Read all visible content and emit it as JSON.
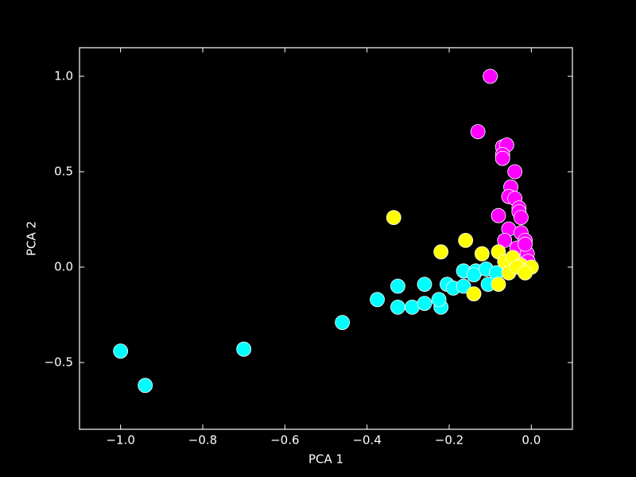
{
  "chart_data": {
    "type": "scatter",
    "x_label": "PCA 1",
    "y_label": "PCA 2",
    "xlim": [
      -1.1,
      0.1
    ],
    "ylim": [
      -0.85,
      1.15
    ],
    "xticks": [
      {
        "value": -1.0,
        "label": "−1.0"
      },
      {
        "value": -0.8,
        "label": "−0.8"
      },
      {
        "value": -0.6,
        "label": "−0.6"
      },
      {
        "value": -0.4,
        "label": "−0.4"
      },
      {
        "value": -0.2,
        "label": "−0.2"
      },
      {
        "value": 0.0,
        "label": "0.0"
      }
    ],
    "yticks": [
      {
        "value": -0.5,
        "label": "−0.5"
      },
      {
        "value": 0.0,
        "label": "0.0"
      },
      {
        "value": 0.5,
        "label": "0.5"
      },
      {
        "value": 1.0,
        "label": "1.0"
      }
    ],
    "series": [
      {
        "color": "#00ffff",
        "x": [
          -1.0,
          -0.94,
          -0.7,
          -0.46,
          -0.375,
          -0.325,
          -0.325,
          -0.29,
          -0.26,
          -0.26,
          -0.22,
          -0.225,
          -0.205,
          -0.19,
          -0.165,
          -0.165,
          -0.135,
          -0.14,
          -0.105,
          -0.11,
          -0.085
        ],
        "values": [
          -0.44,
          -0.62,
          -0.43,
          -0.29,
          -0.17,
          -0.21,
          -0.1,
          -0.21,
          -0.09,
          -0.19,
          -0.21,
          -0.17,
          -0.09,
          -0.11,
          -0.02,
          -0.1,
          -0.02,
          -0.04,
          -0.09,
          -0.01,
          -0.03
        ]
      },
      {
        "color": "#ff00ff",
        "x": [
          -0.1,
          -0.13,
          -0.07,
          -0.06,
          -0.07,
          -0.07,
          -0.04,
          -0.05,
          -0.055,
          -0.04,
          -0.03,
          -0.08,
          -0.03,
          -0.025,
          -0.055,
          -0.025,
          -0.015,
          -0.065,
          -0.035,
          -0.01,
          -0.015,
          -0.045,
          -0.008
        ],
        "values": [
          1.0,
          0.71,
          0.63,
          0.64,
          0.59,
          0.57,
          0.5,
          0.42,
          0.37,
          0.36,
          0.31,
          0.27,
          0.29,
          0.26,
          0.2,
          0.18,
          0.14,
          0.14,
          0.1,
          0.07,
          0.12,
          0.05,
          0.03
        ]
      },
      {
        "color": "#ffff00",
        "x": [
          -0.335,
          -0.16,
          -0.22,
          -0.14,
          -0.12,
          -0.08,
          -0.08,
          -0.065,
          -0.045,
          -0.055,
          -0.025,
          0.0,
          -0.035,
          -0.015
        ],
        "values": [
          0.26,
          0.14,
          0.08,
          -0.14,
          0.07,
          -0.09,
          0.08,
          0.03,
          0.05,
          -0.03,
          0.01,
          0.0,
          0.0,
          -0.03
        ]
      }
    ]
  }
}
